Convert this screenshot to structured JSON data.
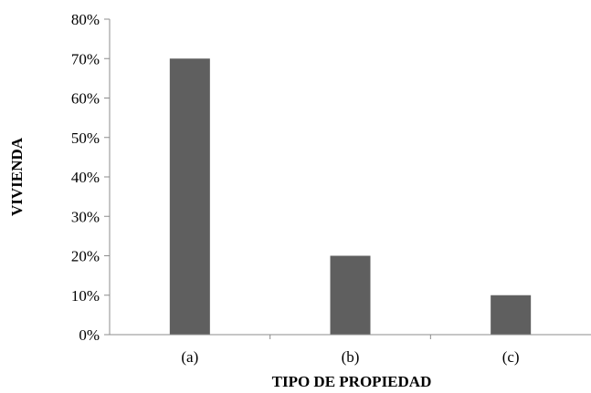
{
  "chart_data": {
    "type": "bar",
    "title": "",
    "xlabel": "TIPO DE PROPIEDAD",
    "ylabel": "VIVIENDA",
    "categories": [
      "(a)",
      "(b)",
      "(c)"
    ],
    "values": [
      0.7,
      0.2,
      0.1
    ],
    "ylim": [
      0,
      0.8
    ],
    "yticks": [
      0,
      0.1,
      0.2,
      0.3,
      0.4,
      0.5,
      0.6,
      0.7,
      0.8
    ],
    "ytick_labels": [
      "0%",
      "10%",
      "20%",
      "30%",
      "40%",
      "50%",
      "60%",
      "70%",
      "80%"
    ],
    "grid": false,
    "legend": "none",
    "colors": {
      "bar": "#5f5f5f",
      "axis": "#8c8c8c"
    }
  }
}
